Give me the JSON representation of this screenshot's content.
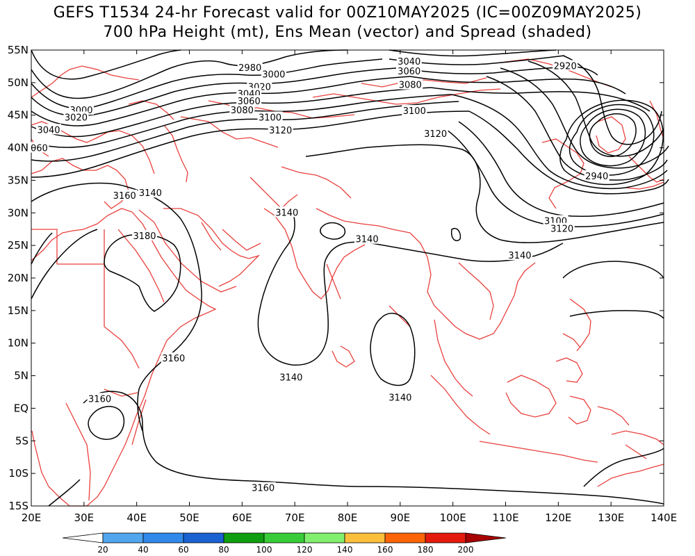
{
  "title": {
    "line1": "GEFS T1534 24-hr Forecast valid for 00Z10MAY2025 (IC=00Z09MAY2025)",
    "line2": "700 hPa Height (mt), Ens Mean (vector) and Spread (shaded)"
  },
  "axes": {
    "lat_labels": [
      "55N",
      "50N",
      "45N",
      "40N",
      "35N",
      "30N",
      "25N",
      "20N",
      "15N",
      "10N",
      "5N",
      "EQ",
      "5S",
      "10S",
      "15S"
    ],
    "lon_labels": [
      "20E",
      "30E",
      "40E",
      "50E",
      "60E",
      "70E",
      "80E",
      "90E",
      "100E",
      "110E",
      "120E",
      "130E",
      "140E"
    ]
  },
  "contour_labels": [
    {
      "text": "2980",
      "lon": 61.5,
      "lat": 52.2
    },
    {
      "text": "3000",
      "lon": 66.0,
      "lat": 51.2
    },
    {
      "text": "3020",
      "lon": 63.3,
      "lat": 49.3
    },
    {
      "text": "3040",
      "lon": 61.3,
      "lat": 48.2
    },
    {
      "text": "3060",
      "lon": 61.3,
      "lat": 47.1
    },
    {
      "text": "3080",
      "lon": 60.0,
      "lat": 45.7
    },
    {
      "text": "3100",
      "lon": 65.3,
      "lat": 44.6
    },
    {
      "text": "3120",
      "lon": 67.3,
      "lat": 42.6
    },
    {
      "text": "3000",
      "lon": 29.5,
      "lat": 45.7
    },
    {
      "text": "3020",
      "lon": 28.5,
      "lat": 44.6
    },
    {
      "text": "3040",
      "lon": 23.3,
      "lat": 42.7
    },
    {
      "text": "060",
      "lon": 21.5,
      "lat": 39.9
    },
    {
      "text": "3040",
      "lon": 91.7,
      "lat": 53.2
    },
    {
      "text": "3060",
      "lon": 91.7,
      "lat": 51.7
    },
    {
      "text": "3080",
      "lon": 91.9,
      "lat": 49.6
    },
    {
      "text": "3100",
      "lon": 92.7,
      "lat": 45.6
    },
    {
      "text": "3120",
      "lon": 96.7,
      "lat": 42.1
    },
    {
      "text": "2920",
      "lon": 121.3,
      "lat": 52.5
    },
    {
      "text": "2940",
      "lon": 127.3,
      "lat": 35.6
    },
    {
      "text": "3100",
      "lon": 119.5,
      "lat": 28.7
    },
    {
      "text": "3120",
      "lon": 120.7,
      "lat": 27.5
    },
    {
      "text": "3160",
      "lon": 37.7,
      "lat": 32.6
    },
    {
      "text": "3140",
      "lon": 42.6,
      "lat": 33.0
    },
    {
      "text": "3180",
      "lon": 41.5,
      "lat": 26.4
    },
    {
      "text": "3140",
      "lon": 68.5,
      "lat": 30.0
    },
    {
      "text": "3140",
      "lon": 83.7,
      "lat": 25.9
    },
    {
      "text": "3140",
      "lon": 112.7,
      "lat": 23.4
    },
    {
      "text": "3160",
      "lon": 47.0,
      "lat": 7.6
    },
    {
      "text": "3140",
      "lon": 69.3,
      "lat": 4.7
    },
    {
      "text": "3140",
      "lon": 90.0,
      "lat": 1.6
    },
    {
      "text": "3160",
      "lon": 33.0,
      "lat": 1.4
    },
    {
      "text": "3160",
      "lon": 64.0,
      "lat": -12.3
    }
  ],
  "colorbar": {
    "labels": [
      "20",
      "40",
      "60",
      "80",
      "100",
      "120",
      "140",
      "160",
      "180",
      "200"
    ],
    "colors": [
      "#ffffff",
      "#51a6ee",
      "#3189ea",
      "#1a61d2",
      "#0f9e0f",
      "#38cd38",
      "#83ef6e",
      "#fbbf3c",
      "#fb6508",
      "#e41a0c",
      "#a80202"
    ]
  }
}
